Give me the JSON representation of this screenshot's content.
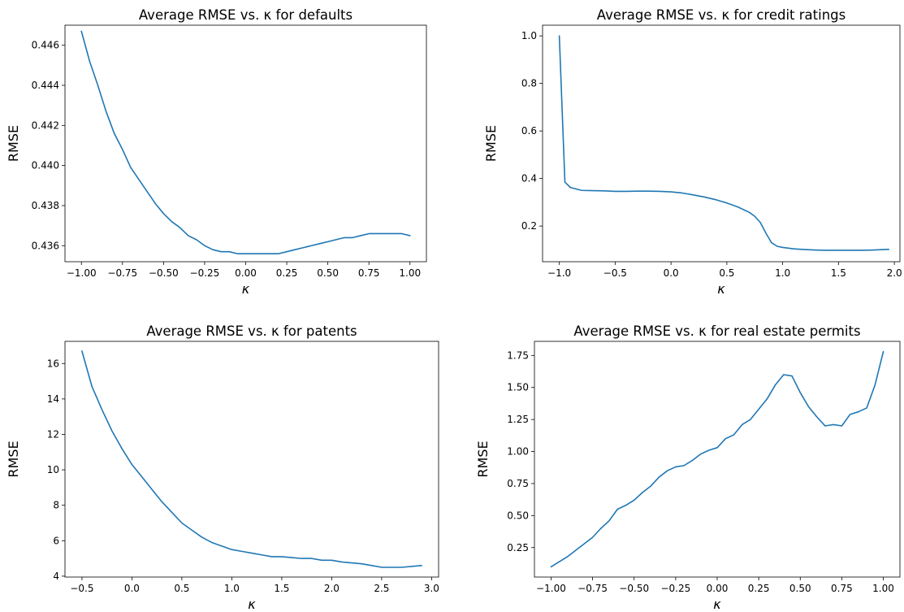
{
  "chart_data": [
    {
      "type": "line",
      "title": "Average RMSE vs. κ for defaults",
      "xlabel": "κ",
      "ylabel": "RMSE",
      "xlim": [
        -1.1,
        1.1
      ],
      "ylim": [
        0.4352,
        0.447
      ],
      "xticks": [
        -1.0,
        -0.75,
        -0.5,
        -0.25,
        0.0,
        0.25,
        0.5,
        0.75,
        1.0
      ],
      "xtick_labels": [
        "−1.00",
        "−0.75",
        "−0.50",
        "−0.25",
        "0.00",
        "0.25",
        "0.50",
        "0.75",
        "1.00"
      ],
      "yticks": [
        0.436,
        0.438,
        0.44,
        0.442,
        0.444,
        0.446
      ],
      "ytick_labels": [
        "0.436",
        "0.438",
        "0.440",
        "0.442",
        "0.444",
        "0.446"
      ],
      "grid": false,
      "series": [
        {
          "x": [
            -1.0,
            -0.95,
            -0.9,
            -0.85,
            -0.8,
            -0.75,
            -0.7,
            -0.65,
            -0.6,
            -0.55,
            -0.5,
            -0.45,
            -0.4,
            -0.35,
            -0.3,
            -0.25,
            -0.2,
            -0.15,
            -0.1,
            -0.05,
            0.0,
            0.05,
            0.1,
            0.15,
            0.2,
            0.25,
            0.3,
            0.35,
            0.4,
            0.45,
            0.5,
            0.55,
            0.6,
            0.65,
            0.7,
            0.75,
            0.8,
            0.85,
            0.9,
            0.95,
            1.0
          ],
          "values": [
            0.4467,
            0.4452,
            0.444,
            0.4427,
            0.4416,
            0.4408,
            0.4399,
            0.4393,
            0.4387,
            0.4381,
            0.4376,
            0.4372,
            0.4369,
            0.4365,
            0.4363,
            0.436,
            0.4358,
            0.4357,
            0.4357,
            0.4356,
            0.4356,
            0.4356,
            0.4356,
            0.4356,
            0.4356,
            0.4357,
            0.4358,
            0.4359,
            0.436,
            0.4361,
            0.4362,
            0.4363,
            0.4364,
            0.4364,
            0.4365,
            0.4366,
            0.4366,
            0.4366,
            0.4366,
            0.4366,
            0.4365
          ]
        }
      ]
    },
    {
      "type": "line",
      "title": "Average RMSE vs. κ for credit ratings",
      "xlabel": "κ",
      "ylabel": "RMSE",
      "xlim": [
        -1.15,
        2.05
      ],
      "ylim": [
        0.05,
        1.045
      ],
      "xticks": [
        -1.0,
        -0.5,
        0.0,
        0.5,
        1.0,
        1.5,
        2.0
      ],
      "xtick_labels": [
        "−1.0",
        "−0.5",
        "0.0",
        "0.5",
        "1.0",
        "1.5",
        "2.0"
      ],
      "yticks": [
        0.2,
        0.4,
        0.6,
        0.8,
        1.0
      ],
      "ytick_labels": [
        "0.2",
        "0.4",
        "0.6",
        "0.8",
        "1.0"
      ],
      "grid": false,
      "series": [
        {
          "x": [
            -1.0,
            -0.95,
            -0.9,
            -0.8,
            -0.7,
            -0.6,
            -0.5,
            -0.4,
            -0.3,
            -0.2,
            -0.1,
            0.0,
            0.1,
            0.2,
            0.3,
            0.4,
            0.5,
            0.6,
            0.7,
            0.75,
            0.8,
            0.85,
            0.9,
            0.95,
            1.0,
            1.1,
            1.2,
            1.3,
            1.4,
            1.5,
            1.6,
            1.7,
            1.8,
            1.9,
            1.95
          ],
          "values": [
            1.0,
            0.385,
            0.362,
            0.35,
            0.349,
            0.348,
            0.346,
            0.346,
            0.347,
            0.347,
            0.346,
            0.344,
            0.339,
            0.331,
            0.322,
            0.311,
            0.297,
            0.28,
            0.258,
            0.241,
            0.215,
            0.17,
            0.13,
            0.115,
            0.11,
            0.104,
            0.101,
            0.099,
            0.098,
            0.098,
            0.098,
            0.098,
            0.099,
            0.101,
            0.102
          ]
        }
      ]
    },
    {
      "type": "line",
      "title": "Average RMSE vs. κ for patents",
      "xlabel": "κ",
      "ylabel": "RMSE",
      "xlim": [
        -0.67,
        3.07
      ],
      "ylim": [
        3.95,
        17.25
      ],
      "xticks": [
        -0.5,
        0.0,
        0.5,
        1.0,
        1.5,
        2.0,
        2.5,
        3.0
      ],
      "xtick_labels": [
        "−0.5",
        "0.0",
        "0.5",
        "1.0",
        "1.5",
        "2.0",
        "2.5",
        "3.0"
      ],
      "yticks": [
        4,
        6,
        8,
        10,
        12,
        14,
        16
      ],
      "ytick_labels": [
        "4",
        "6",
        "8",
        "10",
        "12",
        "14",
        "16"
      ],
      "grid": false,
      "series": [
        {
          "x": [
            -0.5,
            -0.4,
            -0.3,
            -0.2,
            -0.1,
            0.0,
            0.1,
            0.2,
            0.3,
            0.4,
            0.5,
            0.6,
            0.7,
            0.8,
            0.9,
            1.0,
            1.1,
            1.2,
            1.3,
            1.4,
            1.5,
            1.6,
            1.7,
            1.8,
            1.9,
            2.0,
            2.1,
            2.2,
            2.3,
            2.4,
            2.5,
            2.6,
            2.7,
            2.8,
            2.9
          ],
          "values": [
            16.7,
            14.7,
            13.4,
            12.2,
            11.2,
            10.3,
            9.6,
            8.9,
            8.2,
            7.6,
            7.0,
            6.6,
            6.2,
            5.9,
            5.7,
            5.5,
            5.4,
            5.3,
            5.2,
            5.1,
            5.1,
            5.05,
            5.0,
            5.0,
            4.9,
            4.9,
            4.8,
            4.75,
            4.7,
            4.6,
            4.5,
            4.5,
            4.5,
            4.55,
            4.6
          ]
        }
      ]
    },
    {
      "type": "line",
      "title": "Average RMSE vs. κ for real estate permits",
      "xlabel": "κ",
      "ylabel": "RMSE",
      "xlim": [
        -1.1,
        1.1
      ],
      "ylim": [
        0.02,
        1.86
      ],
      "xticks": [
        -1.0,
        -0.75,
        -0.5,
        -0.25,
        0.0,
        0.25,
        0.5,
        0.75,
        1.0
      ],
      "xtick_labels": [
        "−1.00",
        "−0.75",
        "−0.50",
        "−0.25",
        "0.00",
        "0.25",
        "0.50",
        "0.75",
        "1.00"
      ],
      "yticks": [
        0.25,
        0.5,
        0.75,
        1.0,
        1.25,
        1.5,
        1.75
      ],
      "ytick_labels": [
        "0.25",
        "0.50",
        "0.75",
        "1.00",
        "1.25",
        "1.50",
        "1.75"
      ],
      "grid": false,
      "series": [
        {
          "x": [
            -1.0,
            -0.95,
            -0.9,
            -0.85,
            -0.8,
            -0.75,
            -0.7,
            -0.65,
            -0.6,
            -0.55,
            -0.5,
            -0.45,
            -0.4,
            -0.35,
            -0.3,
            -0.25,
            -0.2,
            -0.15,
            -0.1,
            -0.05,
            0.0,
            0.05,
            0.1,
            0.15,
            0.2,
            0.25,
            0.3,
            0.35,
            0.4,
            0.45,
            0.5,
            0.55,
            0.6,
            0.65,
            0.7,
            0.75,
            0.8,
            0.85,
            0.9,
            0.95,
            1.0
          ],
          "values": [
            0.1,
            0.14,
            0.18,
            0.23,
            0.28,
            0.33,
            0.4,
            0.46,
            0.55,
            0.58,
            0.62,
            0.68,
            0.73,
            0.8,
            0.85,
            0.88,
            0.89,
            0.93,
            0.98,
            1.01,
            1.03,
            1.1,
            1.13,
            1.21,
            1.25,
            1.33,
            1.41,
            1.52,
            1.6,
            1.59,
            1.46,
            1.35,
            1.27,
            1.2,
            1.21,
            1.2,
            1.29,
            1.31,
            1.34,
            1.52,
            1.78
          ]
        }
      ]
    }
  ]
}
